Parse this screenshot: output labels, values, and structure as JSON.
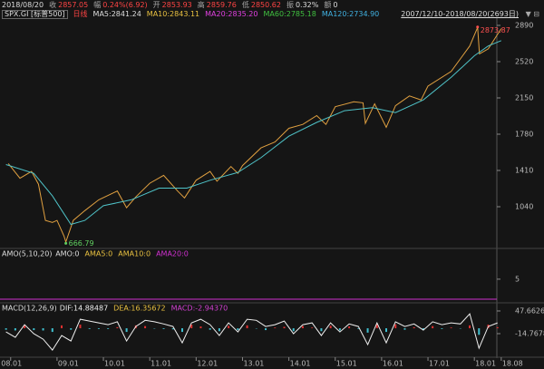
{
  "header": {
    "date": "2018/08/20",
    "items": [
      {
        "label": "收",
        "value": "2857.05",
        "color": "#ff4444"
      },
      {
        "label": "幅",
        "value": "0.24%(6.92)",
        "color": "#ff4444"
      },
      {
        "label": "开",
        "value": "2853.93",
        "color": "#ff4444"
      },
      {
        "label": "高",
        "value": "2859.76",
        "color": "#ff4444"
      },
      {
        "label": "低",
        "value": "2850.62",
        "color": "#ff4444"
      },
      {
        "label": "振",
        "value": "0.32%",
        "color": "#dddddd"
      },
      {
        "label": "额",
        "value": "0",
        "color": "#dddddd"
      }
    ]
  },
  "legend": {
    "symbol": "SPX.GI [标普500]",
    "period": "日线",
    "range": "2007/12/10-2018/08/20(2693日)",
    "ma": [
      {
        "text": "MA5:2841.24",
        "color": "#dddddd"
      },
      {
        "text": "MA10:2843.11",
        "color": "#e8c040"
      },
      {
        "text": "MA20:2835.20",
        "color": "#e040e0"
      },
      {
        "text": "MA60:2785.18",
        "color": "#40c040"
      },
      {
        "text": "MA120:2734.90",
        "color": "#40b0e0"
      }
    ]
  },
  "chart_data": [
    {
      "type": "line",
      "xlim": [
        2007.77,
        2018.72
      ],
      "ylim": [
        633,
        2964
      ],
      "yticks": [
        2890,
        2520,
        2150,
        1780,
        1410,
        1040
      ],
      "xticks": [
        {
          "value": 2008,
          "label": "08.01"
        },
        {
          "value": 2009,
          "label": "09.01"
        },
        {
          "value": 2010,
          "label": "10.01"
        },
        {
          "value": 2011,
          "label": "11.01"
        },
        {
          "value": 2012,
          "label": "12.01"
        },
        {
          "value": 2013,
          "label": "13.01"
        },
        {
          "value": 2014,
          "label": "14.01"
        },
        {
          "value": 2015,
          "label": "15.01"
        },
        {
          "value": 2016,
          "label": "16.01"
        },
        {
          "value": 2017,
          "label": "17.01"
        },
        {
          "value": 2018,
          "label": "18.01"
        },
        {
          "value": 2018.58,
          "label": "18.08"
        }
      ],
      "series": [
        {
          "color": "#e0a040",
          "x": [
            2007.95,
            2008.2,
            2008.45,
            2008.6,
            2008.75,
            2008.9,
            2009.0,
            2009.15,
            2009.19,
            2009.35,
            2009.6,
            2009.9,
            2010.3,
            2010.5,
            2010.7,
            2011.0,
            2011.3,
            2011.6,
            2011.75,
            2012.0,
            2012.3,
            2012.45,
            2012.75,
            2012.9,
            2013.0,
            2013.4,
            2013.7,
            2014.0,
            2014.3,
            2014.6,
            2014.8,
            2015.0,
            2015.4,
            2015.6,
            2015.65,
            2015.85,
            2016.1,
            2016.3,
            2016.6,
            2016.85,
            2017.0,
            2017.5,
            2017.9,
            2018.07,
            2018.11,
            2018.3,
            2018.58
          ],
          "values": [
            1480,
            1330,
            1400,
            1270,
            900,
            880,
            900,
            740,
            680,
            900,
            1000,
            1110,
            1200,
            1030,
            1140,
            1280,
            1360,
            1200,
            1130,
            1310,
            1400,
            1300,
            1450,
            1380,
            1460,
            1640,
            1700,
            1840,
            1880,
            1970,
            1880,
            2060,
            2110,
            2100,
            1890,
            2090,
            1850,
            2070,
            2170,
            2130,
            2270,
            2420,
            2680,
            2870,
            2600,
            2650,
            2857
          ]
        },
        {
          "color": "#4fc3c8",
          "x": [
            2007.9,
            2008.5,
            2008.9,
            2009.3,
            2009.6,
            2010.0,
            2010.6,
            2011.2,
            2011.8,
            2012.3,
            2012.9,
            2013.4,
            2014.0,
            2014.6,
            2015.2,
            2015.8,
            2016.3,
            2016.9,
            2017.5,
            2018.0,
            2018.3,
            2018.58
          ],
          "values": [
            1470,
            1380,
            1150,
            860,
            900,
            1050,
            1110,
            1230,
            1230,
            1310,
            1390,
            1540,
            1760,
            1900,
            2020,
            2050,
            2000,
            2130,
            2360,
            2580,
            2680,
            2735
          ]
        }
      ],
      "annotations": [
        {
          "label": "2873.87",
          "x": 2018.07,
          "y": 2873.87,
          "color": "#ff5050"
        },
        {
          "label": "666.79",
          "x": 2009.19,
          "y": 666.79,
          "color": "#60d060"
        }
      ]
    },
    {
      "type": "level",
      "title": "AMO(5,10,20)",
      "xlim": [
        2007.77,
        2018.72
      ],
      "ylim": [
        0,
        12
      ],
      "yticks": [
        5
      ],
      "series": [
        {
          "label": "AMO:0",
          "value": 0,
          "color": "#dddddd"
        },
        {
          "label": "AMA5:0",
          "value": 0,
          "color": "#e8c040"
        },
        {
          "label": "AMA10:0",
          "value": 0,
          "color": "#e8c040"
        },
        {
          "label": "AMA20:0",
          "value": 0,
          "color": "#d030d0"
        }
      ]
    },
    {
      "type": "macd",
      "title": "MACD(12,26,9)",
      "xlim": [
        2007.77,
        2018.72
      ],
      "ylim": [
        -74.7,
        62.6
      ],
      "yticks": [
        47.66262,
        -14.76782
      ],
      "x": [
        2007.9,
        2008.1,
        2008.3,
        2008.5,
        2008.7,
        2008.9,
        2009.1,
        2009.3,
        2009.5,
        2009.7,
        2009.9,
        2010.1,
        2010.3,
        2010.5,
        2010.7,
        2010.9,
        2011.1,
        2011.3,
        2011.5,
        2011.7,
        2011.9,
        2012.1,
        2012.3,
        2012.5,
        2012.7,
        2012.9,
        2013.1,
        2013.3,
        2013.5,
        2013.7,
        2013.9,
        2014.1,
        2014.3,
        2014.5,
        2014.7,
        2014.9,
        2015.1,
        2015.3,
        2015.5,
        2015.7,
        2015.9,
        2016.1,
        2016.3,
        2016.5,
        2016.7,
        2016.9,
        2017.1,
        2017.3,
        2017.5,
        2017.7,
        2017.9,
        2018.1,
        2018.3,
        2018.5
      ],
      "up_color": "#e03030",
      "down_color": "#40c0d0",
      "series": [
        {
          "label": "DIF:14.88487",
          "color": "#eeeeee",
          "kind": "line",
          "values": [
            -10,
            -25,
            10,
            -15,
            -30,
            -60,
            -20,
            -35,
            25,
            20,
            15,
            10,
            18,
            -35,
            5,
            22,
            18,
            12,
            5,
            -40,
            15,
            25,
            10,
            -20,
            15,
            -10,
            25,
            22,
            5,
            10,
            20,
            -15,
            10,
            15,
            -20,
            15,
            -10,
            12,
            5,
            -45,
            15,
            -40,
            18,
            5,
            12,
            -5,
            18,
            10,
            15,
            12,
            40,
            -55,
            5,
            15
          ]
        },
        {
          "label": "DEA:16.35672",
          "color": "#e8c040",
          "kind": "label"
        },
        {
          "label": "MACD:-2.94370",
          "color": "#d040d0",
          "kind": "bar",
          "values": [
            -4,
            -6,
            8,
            -5,
            -6,
            -10,
            8,
            -4,
            10,
            -2,
            -2,
            -2,
            3,
            -10,
            8,
            6,
            -1,
            -2,
            -3,
            -10,
            10,
            5,
            -4,
            -8,
            7,
            -5,
            8,
            -1,
            -5,
            2,
            4,
            -8,
            6,
            2,
            -8,
            7,
            -6,
            5,
            -2,
            -12,
            12,
            -10,
            11,
            -4,
            3,
            -5,
            6,
            -2,
            2,
            -1,
            8,
            -18,
            10,
            3
          ]
        }
      ]
    }
  ]
}
